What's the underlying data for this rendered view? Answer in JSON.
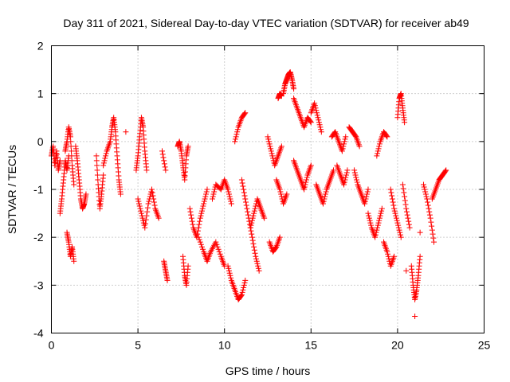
{
  "chart_data": {
    "type": "scatter",
    "title": "Day 311 of 2021, Sidereal Day-to-day VTEC variation (SDTVAR) for receiver ab49",
    "xlabel": "GPS time / hours",
    "ylabel": "SDTVAR / TECUs",
    "xlim": [
      0,
      25
    ],
    "ylim": [
      -4,
      2
    ],
    "xticks": [
      0,
      5,
      10,
      15,
      20,
      25
    ],
    "yticks": [
      -4,
      -3,
      -2,
      -1,
      0,
      1,
      2
    ],
    "grid": true,
    "marker": "+",
    "marker_color": "#ff0000",
    "series": [
      {
        "name": "SDTVAR",
        "segments": [
          {
            "x": [
              0.0,
              0.1,
              0.2,
              0.3,
              0.4,
              0.5
            ],
            "y": [
              -0.3,
              -0.1,
              -0.5,
              -0.2,
              -0.6,
              -0.4
            ]
          },
          {
            "x": [
              0.5,
              0.6,
              0.7,
              0.8,
              0.9,
              1.0
            ],
            "y": [
              -1.5,
              -1.2,
              -0.8,
              -0.4,
              -0.6,
              -0.3
            ]
          },
          {
            "x": [
              0.8,
              0.9,
              1.0,
              1.1,
              1.2,
              1.3
            ],
            "y": [
              -0.2,
              0.0,
              0.3,
              0.1,
              -0.5,
              -0.9
            ]
          },
          {
            "x": [
              0.9,
              1.0,
              1.1,
              1.2,
              1.3
            ],
            "y": [
              -1.9,
              -2.1,
              -2.4,
              -2.2,
              -2.5
            ]
          },
          {
            "x": [
              1.4,
              1.5,
              1.6,
              1.7,
              1.8,
              1.9,
              2.0
            ],
            "y": [
              -0.1,
              -0.4,
              -0.8,
              -1.2,
              -1.4,
              -1.3,
              -1.1
            ]
          },
          {
            "x": [
              2.6,
              2.7,
              2.8,
              2.9,
              3.0
            ],
            "y": [
              -0.3,
              -0.9,
              -1.4,
              -1.1,
              -0.7
            ]
          },
          {
            "x": [
              3.0,
              3.2,
              3.4,
              3.5,
              3.6,
              3.7,
              3.8,
              3.9,
              4.0
            ],
            "y": [
              -0.5,
              -0.2,
              0.0,
              0.3,
              0.5,
              0.2,
              -0.3,
              -0.8,
              -1.1
            ]
          },
          {
            "x": [
              4.3
            ],
            "y": [
              0.2
            ]
          },
          {
            "x": [
              4.9,
              5.0,
              5.1,
              5.2,
              5.3,
              5.4,
              5.5
            ],
            "y": [
              -0.6,
              -0.3,
              0.1,
              0.5,
              0.3,
              -0.2,
              -0.6
            ]
          },
          {
            "x": [
              5.0,
              5.2,
              5.4,
              5.6,
              5.8,
              6.0,
              6.2
            ],
            "y": [
              -1.2,
              -1.5,
              -1.8,
              -1.3,
              -1.0,
              -1.4,
              -1.6
            ]
          },
          {
            "x": [
              6.4,
              6.6
            ],
            "y": [
              -0.2,
              -0.6
            ]
          },
          {
            "x": [
              6.5,
              6.6,
              6.7
            ],
            "y": [
              -2.5,
              -2.7,
              -2.9
            ]
          },
          {
            "x": [
              7.3,
              7.4,
              7.5,
              7.6,
              7.7,
              7.8,
              7.9
            ],
            "y": [
              -0.1,
              0.0,
              -0.2,
              -0.5,
              -0.8,
              -0.3,
              -0.1
            ]
          },
          {
            "x": [
              7.6,
              7.7,
              7.8,
              7.9
            ],
            "y": [
              -2.4,
              -2.8,
              -3.0,
              -2.6
            ]
          },
          {
            "x": [
              8.0,
              8.2,
              8.4,
              8.6,
              8.8,
              9.0
            ],
            "y": [
              -1.4,
              -1.8,
              -2.0,
              -1.6,
              -1.3,
              -1.0
            ]
          },
          {
            "x": [
              8.5,
              8.8,
              9.0,
              9.2,
              9.5,
              9.8,
              10.0
            ],
            "y": [
              -2.0,
              -2.3,
              -2.5,
              -2.3,
              -2.1,
              -2.4,
              -2.6
            ]
          },
          {
            "x": [
              9.3,
              9.5,
              9.8,
              10.0,
              10.2,
              10.4
            ],
            "y": [
              -1.2,
              -0.9,
              -1.0,
              -0.8,
              -1.0,
              -1.3
            ]
          },
          {
            "x": [
              10.2,
              10.4,
              10.6,
              10.8,
              11.0,
              11.2
            ],
            "y": [
              -2.6,
              -2.9,
              -3.1,
              -3.3,
              -3.2,
              -2.9
            ]
          },
          {
            "x": [
              10.6,
              10.8,
              11.0,
              11.2
            ],
            "y": [
              0.0,
              0.3,
              0.5,
              0.6
            ]
          },
          {
            "x": [
              11.0,
              11.2,
              11.4,
              11.6,
              11.8,
              12.0
            ],
            "y": [
              -0.8,
              -1.2,
              -1.6,
              -2.0,
              -2.4,
              -2.7
            ]
          },
          {
            "x": [
              11.5,
              11.7,
              11.9,
              12.1,
              12.3
            ],
            "y": [
              -1.8,
              -1.5,
              -1.2,
              -1.4,
              -1.6
            ]
          },
          {
            "x": [
              12.5,
              12.7,
              12.9,
              13.1,
              13.3
            ],
            "y": [
              0.1,
              -0.2,
              -0.5,
              -0.3,
              -0.1
            ]
          },
          {
            "x": [
              12.6,
              12.8,
              13.0,
              13.2
            ],
            "y": [
              -2.1,
              -2.3,
              -2.2,
              -2.0
            ]
          },
          {
            "x": [
              13.0,
              13.2,
              13.4,
              13.6
            ],
            "y": [
              -0.8,
              -1.0,
              -1.3,
              -1.1
            ]
          },
          {
            "x": [
              13.1,
              13.2,
              13.3
            ],
            "y": [
              0.9,
              1.0,
              0.95
            ]
          },
          {
            "x": [
              13.4,
              13.5,
              13.6,
              13.7,
              13.8,
              13.9,
              14.0
            ],
            "y": [
              1.0,
              1.2,
              1.3,
              1.4,
              1.45,
              1.3,
              1.1
            ]
          },
          {
            "x": [
              14.0,
              14.2,
              14.4,
              14.6,
              14.8,
              15.0
            ],
            "y": [
              0.9,
              0.7,
              0.5,
              0.3,
              0.5,
              0.4
            ]
          },
          {
            "x": [
              14.0,
              14.2,
              14.4,
              14.6,
              14.8,
              15.0
            ],
            "y": [
              -0.4,
              -0.6,
              -0.8,
              -1.0,
              -0.7,
              -0.5
            ]
          },
          {
            "x": [
              15.0,
              15.2,
              15.4,
              15.6
            ],
            "y": [
              0.6,
              0.8,
              0.5,
              0.2
            ]
          },
          {
            "x": [
              15.3,
              15.5,
              15.7,
              15.9,
              16.1,
              16.3
            ],
            "y": [
              -0.9,
              -1.1,
              -1.3,
              -1.0,
              -0.8,
              -0.6
            ]
          },
          {
            "x": [
              16.2,
              16.4,
              16.6,
              16.8,
              17.0
            ],
            "y": [
              0.1,
              0.2,
              0.0,
              -0.2,
              0.1
            ]
          },
          {
            "x": [
              16.5,
              16.7,
              16.9,
              17.1
            ],
            "y": [
              -0.5,
              -0.7,
              -0.9,
              -0.6
            ]
          },
          {
            "x": [
              17.2,
              17.4,
              17.6,
              17.8
            ],
            "y": [
              0.3,
              0.2,
              0.1,
              -0.1
            ]
          },
          {
            "x": [
              17.5,
              17.7,
              17.9,
              18.1,
              18.3
            ],
            "y": [
              -0.6,
              -0.9,
              -1.1,
              -1.3,
              -1.0
            ]
          },
          {
            "x": [
              18.3,
              18.5,
              18.7,
              18.9,
              19.1
            ],
            "y": [
              -1.5,
              -1.8,
              -2.0,
              -1.7,
              -1.4
            ]
          },
          {
            "x": [
              18.8,
              19.0,
              19.2,
              19.4
            ],
            "y": [
              -0.3,
              0.0,
              0.2,
              0.1
            ]
          },
          {
            "x": [
              19.2,
              19.4,
              19.6,
              19.8
            ],
            "y": [
              -2.1,
              -2.3,
              -2.6,
              -2.4
            ]
          },
          {
            "x": [
              19.6,
              19.8,
              20.0,
              20.2
            ],
            "y": [
              -1.0,
              -1.4,
              -1.7,
              -2.0
            ]
          },
          {
            "x": [
              20.0,
              20.1,
              20.2,
              20.3,
              20.4
            ],
            "y": [
              0.5,
              0.9,
              1.0,
              0.7,
              0.4
            ]
          },
          {
            "x": [
              20.3,
              20.5,
              20.7
            ],
            "y": [
              -0.9,
              -1.4,
              -1.8
            ]
          },
          {
            "x": [
              20.5
            ],
            "y": [
              -2.7
            ]
          },
          {
            "x": [
              20.8,
              20.9,
              21.0,
              21.1,
              21.2,
              21.3
            ],
            "y": [
              -2.6,
              -3.0,
              -3.3,
              -3.1,
              -2.8,
              -2.4
            ]
          },
          {
            "x": [
              21.0
            ],
            "y": [
              -3.65
            ]
          },
          {
            "x": [
              21.3
            ],
            "y": [
              -1.9
            ]
          },
          {
            "x": [
              21.5,
              21.7,
              21.9,
              22.1
            ],
            "y": [
              -0.9,
              -1.2,
              -1.6,
              -2.1
            ]
          },
          {
            "x": [
              22.0,
              22.2,
              22.4,
              22.6,
              22.8
            ],
            "y": [
              -1.2,
              -1.0,
              -0.8,
              -0.7,
              -0.6
            ]
          }
        ]
      }
    ]
  }
}
